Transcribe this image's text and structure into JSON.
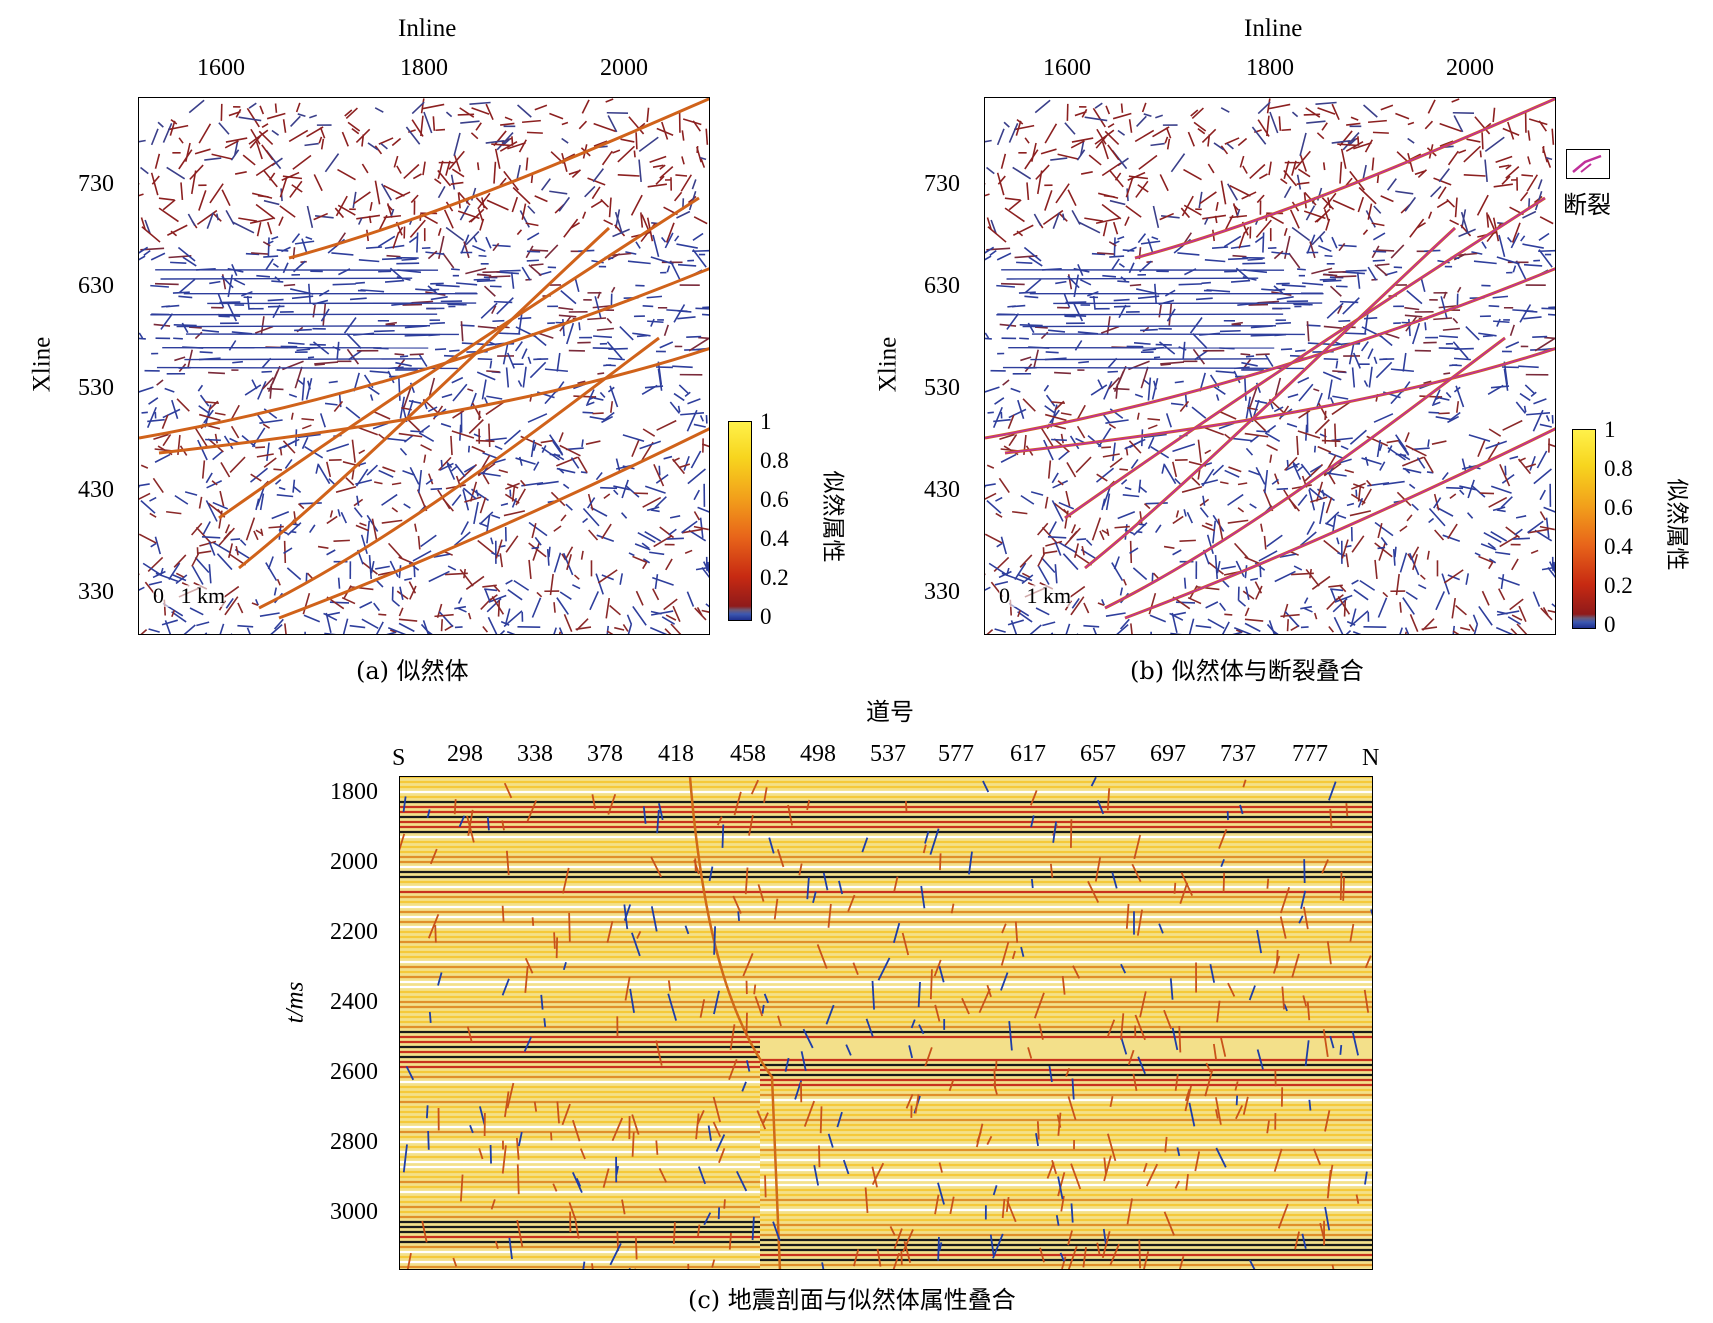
{
  "panel_a": {
    "top_axis_title": "Inline",
    "left_axis_title": "Xline",
    "top_ticks": [
      "1600",
      "1800",
      "2000"
    ],
    "left_ticks": [
      "730",
      "630",
      "530",
      "430",
      "330"
    ],
    "scale_bar": "0   1 km",
    "colorbar_label": "似然属性",
    "colorbar_ticks": [
      "1",
      "0.8",
      "0.6",
      "0.4",
      "0.2",
      "0"
    ],
    "caption": "(a) 似然体"
  },
  "panel_b": {
    "top_axis_title": "Inline",
    "left_axis_title": "Xline",
    "top_ticks": [
      "1600",
      "1800",
      "2000"
    ],
    "left_ticks": [
      "730",
      "630",
      "530",
      "430",
      "330"
    ],
    "scale_bar": "0   1 km",
    "legend_label": "断裂",
    "colorbar_label": "似然属性",
    "colorbar_ticks": [
      "1",
      "0.8",
      "0.6",
      "0.4",
      "0.2",
      "0"
    ],
    "caption": "(b) 似然体与断裂叠合"
  },
  "panel_c": {
    "top_axis_title": "道号",
    "start_label": "S",
    "end_label": "N",
    "top_ticks": [
      "298",
      "338",
      "378",
      "418",
      "458",
      "498",
      "537",
      "577",
      "617",
      "657",
      "697",
      "737",
      "777"
    ],
    "left_axis_title": "t/ms",
    "left_ticks": [
      "1800",
      "2000",
      "2200",
      "2400",
      "2600",
      "2800",
      "3000"
    ],
    "caption": "(c) 地震剖面与似然体属性叠合"
  },
  "colors": {
    "low": "#2a3a9a",
    "mid": "#b42a1e",
    "high": "#f0a01e",
    "fault": "#c0309a"
  }
}
